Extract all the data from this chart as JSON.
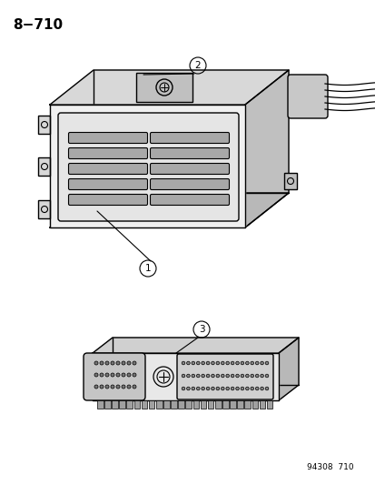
{
  "title": "8−710",
  "catalog_number": "94308  710",
  "bg_color": "#ffffff",
  "line_color": "#000000",
  "label1": "1",
  "label2": "2",
  "label3": "3",
  "figsize": [
    4.14,
    5.33
  ],
  "dpi": 100
}
